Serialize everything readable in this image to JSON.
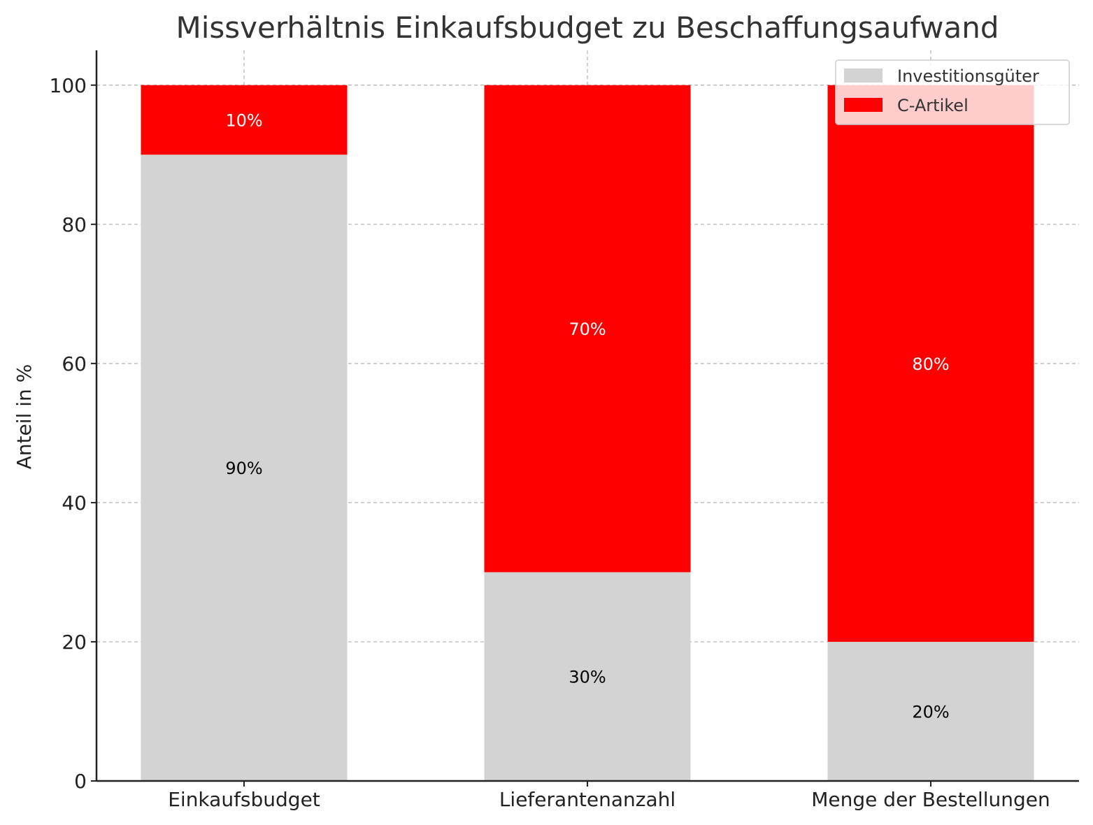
{
  "chart_data": {
    "type": "bar",
    "stacked": true,
    "title": "Missverhältnis Einkaufsbudget zu Beschaffungsaufwand",
    "xlabel": "",
    "ylabel": "Anteil in %",
    "ylim": [
      0,
      105
    ],
    "yticks": [
      "0",
      "20",
      "40",
      "60",
      "80",
      "100"
    ],
    "grid": true,
    "legend_position": "top-right",
    "categories": [
      "Einkaufsbudget",
      "Lieferantenanzahl",
      "Menge der Bestellungen"
    ],
    "series": [
      {
        "name": "Investitionsgüter",
        "color": "#d3d3d3",
        "label_color": "#000000",
        "values": [
          90,
          30,
          20
        ],
        "labels": [
          "90%",
          "30%",
          "20%"
        ]
      },
      {
        "name": "C-Artikel",
        "color": "#ff0000",
        "label_color": "#ffffff",
        "values": [
          10,
          70,
          80
        ],
        "labels": [
          "10%",
          "70%",
          "80%"
        ]
      }
    ]
  }
}
